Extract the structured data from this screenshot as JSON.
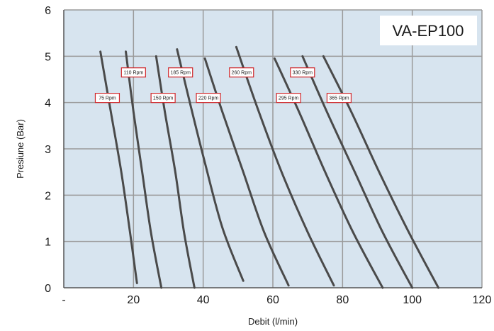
{
  "chart_data": {
    "type": "line",
    "title": "VA-EP100",
    "xlabel": "Debit (l/min)",
    "ylabel": "Presiune (Bar)",
    "xlim": [
      0,
      120
    ],
    "ylim": [
      0,
      6
    ],
    "x_tick_labels": [
      "-",
      "20",
      "40",
      "60",
      "80",
      "100",
      "120"
    ],
    "y_tick_labels": [
      "0",
      "1",
      "2",
      "3",
      "4",
      "5",
      "6"
    ],
    "grid": true,
    "colors": {
      "plot_background": "#d7e4ef",
      "grid": "#9a9a9a",
      "line": "#4a4a4a",
      "label_border": "#d0262a",
      "label_fill": "#ffffff"
    },
    "series": [
      {
        "name": "75 Rpm",
        "label_at": [
          12.5,
          4.1
        ],
        "points": [
          [
            10.5,
            5.1
          ],
          [
            13.5,
            3.8
          ],
          [
            16.5,
            2.5
          ],
          [
            19.0,
            1.2
          ],
          [
            21.0,
            0.1
          ]
        ]
      },
      {
        "name": "110 Rpm",
        "label_at": [
          20.0,
          4.65
        ],
        "points": [
          [
            17.8,
            5.1
          ],
          [
            20.0,
            3.8
          ],
          [
            22.5,
            2.5
          ],
          [
            25.0,
            1.2
          ],
          [
            28.0,
            0.0
          ]
        ]
      },
      {
        "name": "150 Rpm",
        "label_at": [
          28.5,
          4.1
        ],
        "points": [
          [
            26.5,
            5.0
          ],
          [
            29.0,
            3.8
          ],
          [
            32.0,
            2.5
          ],
          [
            34.5,
            1.2
          ],
          [
            37.5,
            0.0
          ]
        ]
      },
      {
        "name": "185 Rpm",
        "label_at": [
          33.5,
          4.65
        ],
        "points": [
          [
            32.5,
            5.15
          ],
          [
            36.5,
            3.9
          ],
          [
            40.5,
            2.7
          ],
          [
            45.5,
            1.3
          ],
          [
            51.5,
            0.15
          ]
        ]
      },
      {
        "name": "220 Rpm",
        "label_at": [
          41.5,
          4.1
        ],
        "points": [
          [
            40.5,
            4.95
          ],
          [
            45.5,
            3.8
          ],
          [
            51.5,
            2.5
          ],
          [
            57.5,
            1.2
          ],
          [
            64.5,
            0.05
          ]
        ]
      },
      {
        "name": "260 Rpm",
        "label_at": [
          51.0,
          4.65
        ],
        "points": [
          [
            49.5,
            5.2
          ],
          [
            55.5,
            3.9
          ],
          [
            62.5,
            2.5
          ],
          [
            70.0,
            1.2
          ],
          [
            77.5,
            0.05
          ]
        ]
      },
      {
        "name": "295 Rpm",
        "label_at": [
          64.5,
          4.1
        ],
        "points": [
          [
            60.5,
            4.95
          ],
          [
            67.5,
            3.8
          ],
          [
            75.0,
            2.5
          ],
          [
            83.0,
            1.2
          ],
          [
            91.5,
            0.0
          ]
        ]
      },
      {
        "name": "330 Rpm",
        "label_at": [
          68.5,
          4.65
        ],
        "points": [
          [
            68.5,
            5.0
          ],
          [
            75.5,
            3.8
          ],
          [
            83.5,
            2.5
          ],
          [
            91.5,
            1.2
          ],
          [
            100.0,
            0.0
          ]
        ]
      },
      {
        "name": "365 Rpm",
        "label_at": [
          79.0,
          4.1
        ],
        "points": [
          [
            74.5,
            5.0
          ],
          [
            82.5,
            3.8
          ],
          [
            90.5,
            2.5
          ],
          [
            99.0,
            1.2
          ],
          [
            107.5,
            0.0
          ]
        ]
      }
    ]
  }
}
